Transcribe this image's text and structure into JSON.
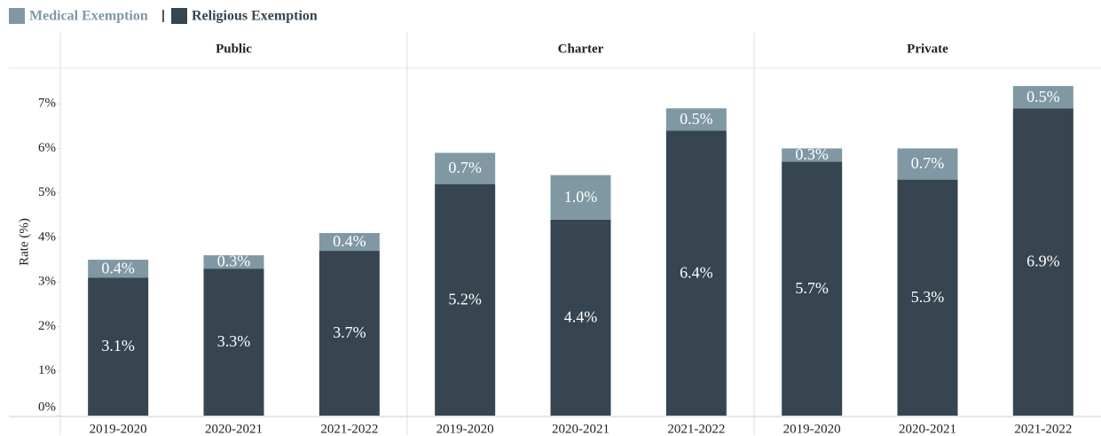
{
  "chart_data": {
    "type": "bar",
    "stacked": true,
    "y_label": "Rate (%)",
    "ylim": [
      0,
      7.8
    ],
    "yticks": [
      {
        "value": 0,
        "label": "0%"
      },
      {
        "value": 1,
        "label": "1%"
      },
      {
        "value": 2,
        "label": "2%"
      },
      {
        "value": 3,
        "label": "3%"
      },
      {
        "value": 4,
        "label": "4%"
      },
      {
        "value": 5,
        "label": "5%"
      },
      {
        "value": 6,
        "label": "6%"
      },
      {
        "value": 7,
        "label": "7%"
      }
    ],
    "legend": "top-left",
    "series": [
      {
        "name": "Medical Exemption",
        "color": "#7f98a4"
      },
      {
        "name": "Religious Exemption",
        "color": "#36454f"
      }
    ],
    "facets": [
      {
        "title": "Public",
        "categories": [
          "2019-2020",
          "2020-2021",
          "2021-2022"
        ],
        "series": [
          {
            "values": [
              0.4,
              0.3,
              0.4
            ],
            "value_labels": [
              "0.4%",
              "0.3%",
              "0.4%"
            ]
          },
          {
            "values": [
              3.1,
              3.3,
              3.7
            ],
            "value_labels": [
              "3.1%",
              "3.3%",
              "3.7%"
            ]
          }
        ]
      },
      {
        "title": "Charter",
        "categories": [
          "2019-2020",
          "2020-2021",
          "2021-2022"
        ],
        "series": [
          {
            "values": [
              0.7,
              1.0,
              0.5
            ],
            "value_labels": [
              "0.7%",
              "1.0%",
              "0.5%"
            ]
          },
          {
            "values": [
              5.2,
              4.4,
              6.4
            ],
            "value_labels": [
              "5.2%",
              "4.4%",
              "6.4%"
            ]
          }
        ]
      },
      {
        "title": "Private",
        "categories": [
          "2019-2020",
          "2020-2021",
          "2021-2022"
        ],
        "series": [
          {
            "values": [
              0.3,
              0.7,
              0.5
            ],
            "value_labels": [
              "0.3%",
              "0.7%",
              "0.5%"
            ]
          },
          {
            "values": [
              5.7,
              5.3,
              6.9
            ],
            "value_labels": [
              "5.7%",
              "5.3%",
              "6.9%"
            ]
          }
        ]
      }
    ]
  }
}
